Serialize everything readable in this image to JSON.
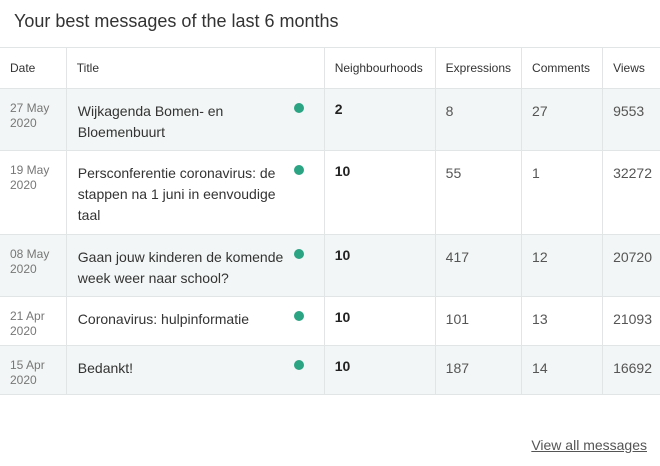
{
  "heading": "Your best messages of the last 6 months",
  "columns": [
    "Date",
    "Title",
    "Neighbourhoods",
    "Expressions",
    "Comments",
    "Views"
  ],
  "rows": [
    {
      "date": "27 May 2020",
      "title": "Wijkagenda Bomen- en Bloemenbuurt",
      "neighbourhoods": "2",
      "expressions": "8",
      "comments": "27",
      "views": "9553",
      "status_color": "#2aa483"
    },
    {
      "date": "19 May 2020",
      "title": "Persconferentie coronavirus: de stappen na 1 juni in eenvoudige taal",
      "neighbourhoods": "10",
      "expressions": "55",
      "comments": "1",
      "views": "32272",
      "status_color": "#2aa483"
    },
    {
      "date": "08 May 2020",
      "title": "Gaan jouw kinderen de komende week weer naar school?",
      "neighbourhoods": "10",
      "expressions": "417",
      "comments": "12",
      "views": "20720",
      "status_color": "#2aa483"
    },
    {
      "date": "21 Apr 2020",
      "title": "Coronavirus: hulpinformatie",
      "neighbourhoods": "10",
      "expressions": "101",
      "comments": "13",
      "views": "21093",
      "status_color": "#2aa483"
    },
    {
      "date": "15 Apr 2020",
      "title": "Bedankt!",
      "neighbourhoods": "10",
      "expressions": "187",
      "comments": "14",
      "views": "16692",
      "status_color": "#2aa483"
    }
  ],
  "view_all_link": "View all messages"
}
